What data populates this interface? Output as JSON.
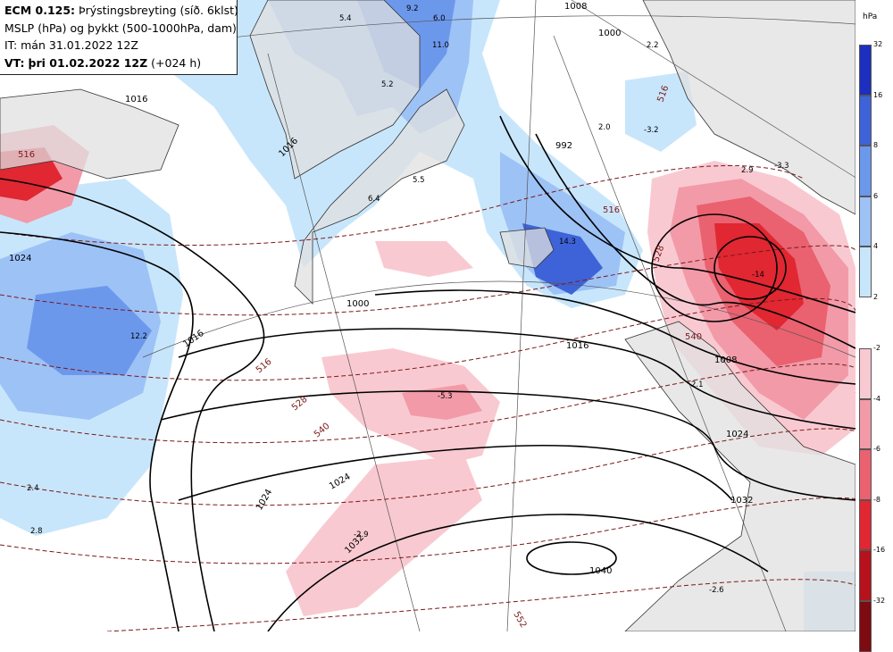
{
  "header": {
    "model": "ECM 0.125:",
    "field": "Þrýstingsbreyting (síð. 6klst)",
    "line2": "MSLP (hPa) og þykkt (500-1000hPa, dam)",
    "line3": "IT: mán 31.01.2022 12Z",
    "vt_label": "VT:",
    "vt_value": "þri 01.02.2022 12Z",
    "vt_offset": "(+024 h)"
  },
  "legend": {
    "unit": "hPa",
    "positive": [
      {
        "label": "32",
        "color": "#1c2fbf"
      },
      {
        "label": "16",
        "color": "#3e63d8"
      },
      {
        "label": "8",
        "color": "#6c98ec"
      },
      {
        "label": "6",
        "color": "#9dc2f6"
      },
      {
        "label": "4",
        "color": "#c8e6fb"
      },
      {
        "label": "2",
        "color": ""
      }
    ],
    "negative": [
      {
        "label": "-2",
        "color": "#f9c9d1"
      },
      {
        "label": "-4",
        "color": "#f29aa8"
      },
      {
        "label": "-6",
        "color": "#ea6170"
      },
      {
        "label": "-8",
        "color": "#e02732"
      },
      {
        "label": "-16",
        "color": "#b5121d"
      },
      {
        "label": "-32",
        "color": "#7e0a12"
      }
    ]
  },
  "map_labels": {
    "isobars": [
      "1008",
      "1000",
      "1016",
      "1016",
      "1008",
      "1024",
      "1032",
      "1040",
      "1016",
      "1000",
      "1032",
      "992",
      "1008",
      "1024",
      "1032",
      "1024"
    ],
    "thickness": [
      "516",
      "528",
      "540",
      "552",
      "516",
      "516",
      "528",
      "540",
      "516"
    ],
    "tendency": [
      "11.0",
      "9.2",
      "6.0",
      "5.4",
      "5.2",
      "14.3",
      "-5.3",
      "-2.9",
      "-14",
      "12.2",
      "2.4",
      "2.8",
      "2.9",
      "-3.3",
      "-3.2",
      "2.0",
      "2.2",
      "2.1",
      "5.5",
      "6.4",
      "-2.6"
    ]
  }
}
